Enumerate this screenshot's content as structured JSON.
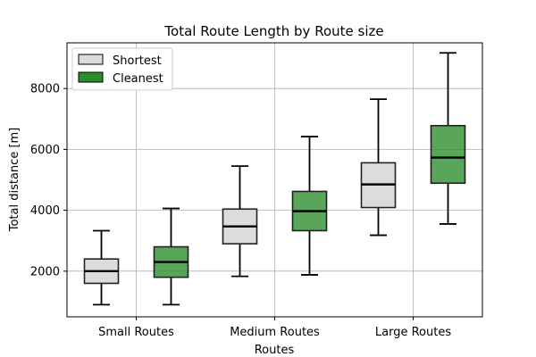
{
  "chart_data": {
    "type": "box",
    "title": "Total Route Length by Route size",
    "xlabel": "Routes",
    "ylabel": "Total distance [m]",
    "categories": [
      "Small Routes",
      "Medium Routes",
      "Large Routes"
    ],
    "ylim": [
      500,
      9500
    ],
    "yticks": [
      2000,
      4000,
      6000,
      8000
    ],
    "grid": true,
    "legend_position": "top-left",
    "series": [
      {
        "name": "Shortest",
        "color": "#dcdcdc",
        "boxes": [
          {
            "min": 900,
            "q1": 1600,
            "median": 2000,
            "q3": 2400,
            "max": 3330
          },
          {
            "min": 1830,
            "q1": 2900,
            "median": 3470,
            "q3": 4040,
            "max": 5450
          },
          {
            "min": 3180,
            "q1": 4090,
            "median": 4850,
            "q3": 5560,
            "max": 7650
          }
        ]
      },
      {
        "name": "Cleanest",
        "color": "#2a8c2a",
        "boxes": [
          {
            "min": 900,
            "q1": 1800,
            "median": 2300,
            "q3": 2800,
            "max": 4060
          },
          {
            "min": 1880,
            "q1": 3330,
            "median": 3970,
            "q3": 4620,
            "max": 6420
          },
          {
            "min": 3550,
            "q1": 4890,
            "median": 5730,
            "q3": 6780,
            "max": 9170
          }
        ]
      }
    ]
  }
}
